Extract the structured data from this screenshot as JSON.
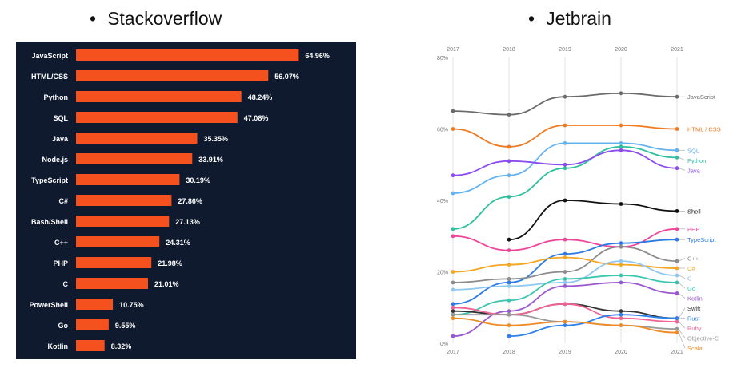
{
  "headings": {
    "bullet": "•",
    "left": "Stackoverflow",
    "right": "Jetbrain"
  },
  "chart_data": [
    {
      "type": "bar",
      "orientation": "horizontal",
      "title": "Stackoverflow",
      "categories": [
        "JavaScript",
        "HTML/CSS",
        "Python",
        "SQL",
        "Java",
        "Node.js",
        "TypeScript",
        "C#",
        "Bash/Shell",
        "C++",
        "PHP",
        "C",
        "PowerShell",
        "Go",
        "Kotlin"
      ],
      "values": [
        64.96,
        56.07,
        48.24,
        47.08,
        35.35,
        33.91,
        30.19,
        27.86,
        27.13,
        24.31,
        21.98,
        21.01,
        10.75,
        9.55,
        8.32
      ],
      "value_labels": [
        "64.96%",
        "56.07%",
        "48.24%",
        "47.08%",
        "35.35%",
        "33.91%",
        "30.19%",
        "27.86%",
        "27.13%",
        "24.31%",
        "21.98%",
        "21.01%",
        "10.75%",
        "9.55%",
        "8.32%"
      ],
      "xlim": [
        0,
        70
      ],
      "bar_color": "#f4511e",
      "background": "#0f1a2e",
      "label_color": "#ffffff"
    },
    {
      "type": "line",
      "title": "Jetbrain",
      "x": [
        "2017",
        "2018",
        "2019",
        "2020",
        "2021"
      ],
      "ylim": [
        0,
        80
      ],
      "yticks": [
        0,
        20,
        40,
        60,
        80
      ],
      "ytick_labels": [
        "0%",
        "20%",
        "40%",
        "60%",
        "80%"
      ],
      "grid": "vertical",
      "legend": "right-end labels",
      "series": [
        {
          "name": "JavaScript",
          "color": "#6b6b6b",
          "values": [
            65,
            64,
            69,
            70,
            69
          ]
        },
        {
          "name": "HTML / CSS",
          "color": "#f07a20",
          "values": [
            60,
            55,
            61,
            61,
            60
          ]
        },
        {
          "name": "SQL",
          "color": "#62b3f0",
          "values": [
            42,
            47,
            56,
            56,
            54
          ]
        },
        {
          "name": "Python",
          "color": "#2fbf9f",
          "values": [
            32,
            41,
            49,
            55,
            52
          ]
        },
        {
          "name": "Java",
          "color": "#8a4cf0",
          "values": [
            47,
            51,
            50,
            54,
            49
          ]
        },
        {
          "name": "Shell",
          "color": "#111111",
          "values": [
            null,
            29,
            40,
            39,
            37
          ]
        },
        {
          "name": "PHP",
          "color": "#f0449a",
          "values": [
            30,
            26,
            29,
            27,
            32
          ]
        },
        {
          "name": "TypeScript",
          "color": "#2c7be5",
          "values": [
            11,
            17,
            25,
            28,
            29
          ]
        },
        {
          "name": "C++",
          "color": "#8c8c8c",
          "values": [
            17,
            18,
            20,
            27,
            23
          ]
        },
        {
          "name": "C#",
          "color": "#f5a623",
          "values": [
            20,
            22,
            24,
            22,
            21
          ]
        },
        {
          "name": "C",
          "color": "#8fc8f0",
          "values": [
            15,
            16,
            17,
            23,
            19
          ]
        },
        {
          "name": "Go",
          "color": "#3cc6b0",
          "values": [
            8,
            12,
            18,
            19,
            17
          ]
        },
        {
          "name": "Kotlin",
          "color": "#9b59d0",
          "values": [
            2,
            9,
            16,
            17,
            14
          ]
        },
        {
          "name": "Swift",
          "color": "#333333",
          "values": [
            9,
            8,
            11,
            9,
            7
          ]
        },
        {
          "name": "Ruby",
          "color": "#f06292",
          "values": [
            10,
            8,
            11,
            7,
            6
          ]
        },
        {
          "name": "Rust",
          "color": "#2f80ed",
          "values": [
            null,
            2,
            5,
            8,
            7
          ]
        },
        {
          "name": "Objective-C",
          "color": "#999999",
          "values": [
            8,
            8,
            6,
            5,
            4
          ]
        },
        {
          "name": "Scala",
          "color": "#f08a24",
          "values": [
            7,
            5,
            6,
            5,
            3
          ]
        }
      ]
    }
  ]
}
